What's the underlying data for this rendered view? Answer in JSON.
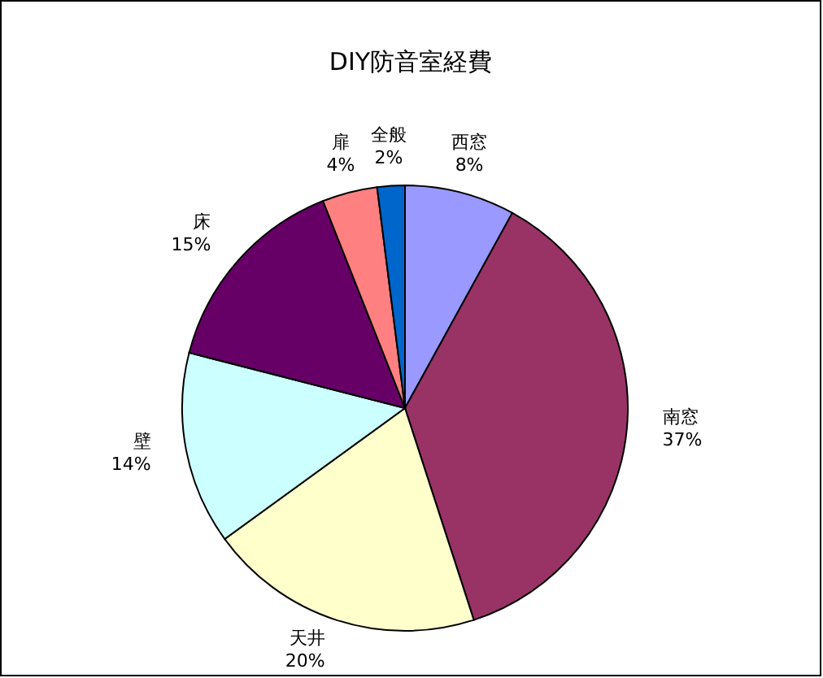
{
  "chart_data": {
    "type": "pie",
    "title": "DIY防音室経費",
    "categories": [
      "西窓",
      "南窓",
      "天井",
      "壁",
      "床",
      "扉",
      "全般"
    ],
    "values": [
      8,
      37,
      20,
      14,
      15,
      4,
      2
    ],
    "value_labels": [
      "8%",
      "37%",
      "20%",
      "14%",
      "15%",
      "4%",
      "2%"
    ],
    "colors": [
      "#9999ff",
      "#993366",
      "#ffffcc",
      "#ccffff",
      "#660066",
      "#ff8080",
      "#0066cc"
    ],
    "legend": false
  }
}
